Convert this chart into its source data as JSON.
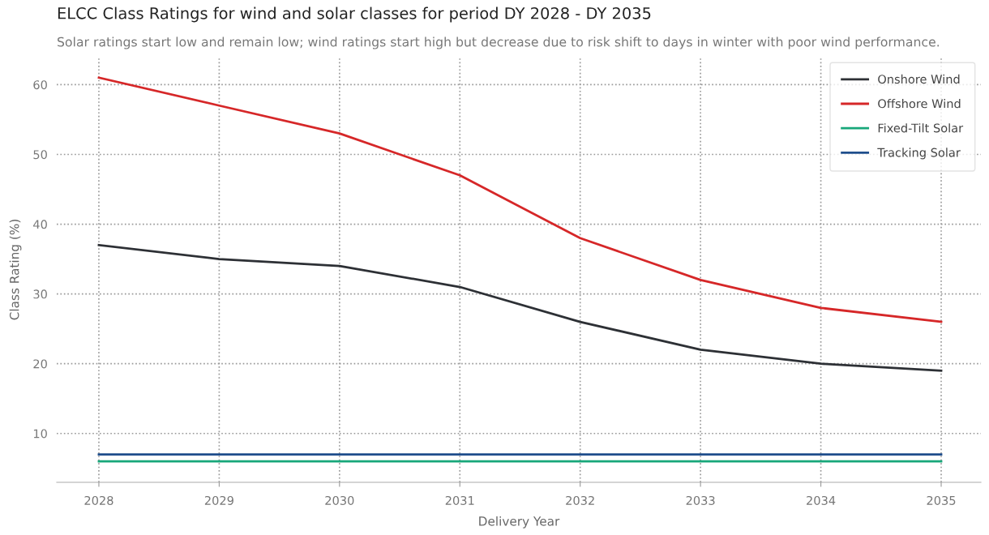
{
  "chart_data": {
    "type": "line",
    "title": "ELCC Class Ratings for wind and solar classes for period DY 2028 - DY 2035",
    "subtitle": "Solar ratings start low and remain low; wind ratings start high but decrease due to risk shift to days in winter with poor wind performance.",
    "xlabel": "Delivery Year",
    "ylabel": "Class Rating (%)",
    "x": [
      2028,
      2029,
      2030,
      2031,
      2032,
      2033,
      2034,
      2035
    ],
    "series": [
      {
        "name": "Onshore Wind",
        "color": "#2d3035",
        "values": [
          37,
          35,
          34,
          31,
          26,
          22,
          20,
          19
        ]
      },
      {
        "name": "Offshore Wind",
        "color": "#d62728",
        "values": [
          61,
          57,
          53,
          47,
          38,
          32,
          28,
          26
        ]
      },
      {
        "name": "Fixed-Tilt Solar",
        "color": "#17a77a",
        "values": [
          6,
          6,
          6,
          6,
          6,
          6,
          6,
          6
        ]
      },
      {
        "name": "Tracking Solar",
        "color": "#1f4e8c",
        "values": [
          7,
          7,
          7,
          7,
          7,
          7,
          7,
          7
        ]
      }
    ],
    "xlim": [
      2027.65,
      2035.33
    ],
    "ylim": [
      3,
      64
    ],
    "xticks": [
      2028,
      2029,
      2030,
      2031,
      2032,
      2033,
      2034,
      2035
    ],
    "yticks": [
      10,
      20,
      30,
      40,
      50,
      60
    ],
    "grid": true,
    "legend": "top right",
    "marker": "none",
    "line_style": "solid"
  }
}
